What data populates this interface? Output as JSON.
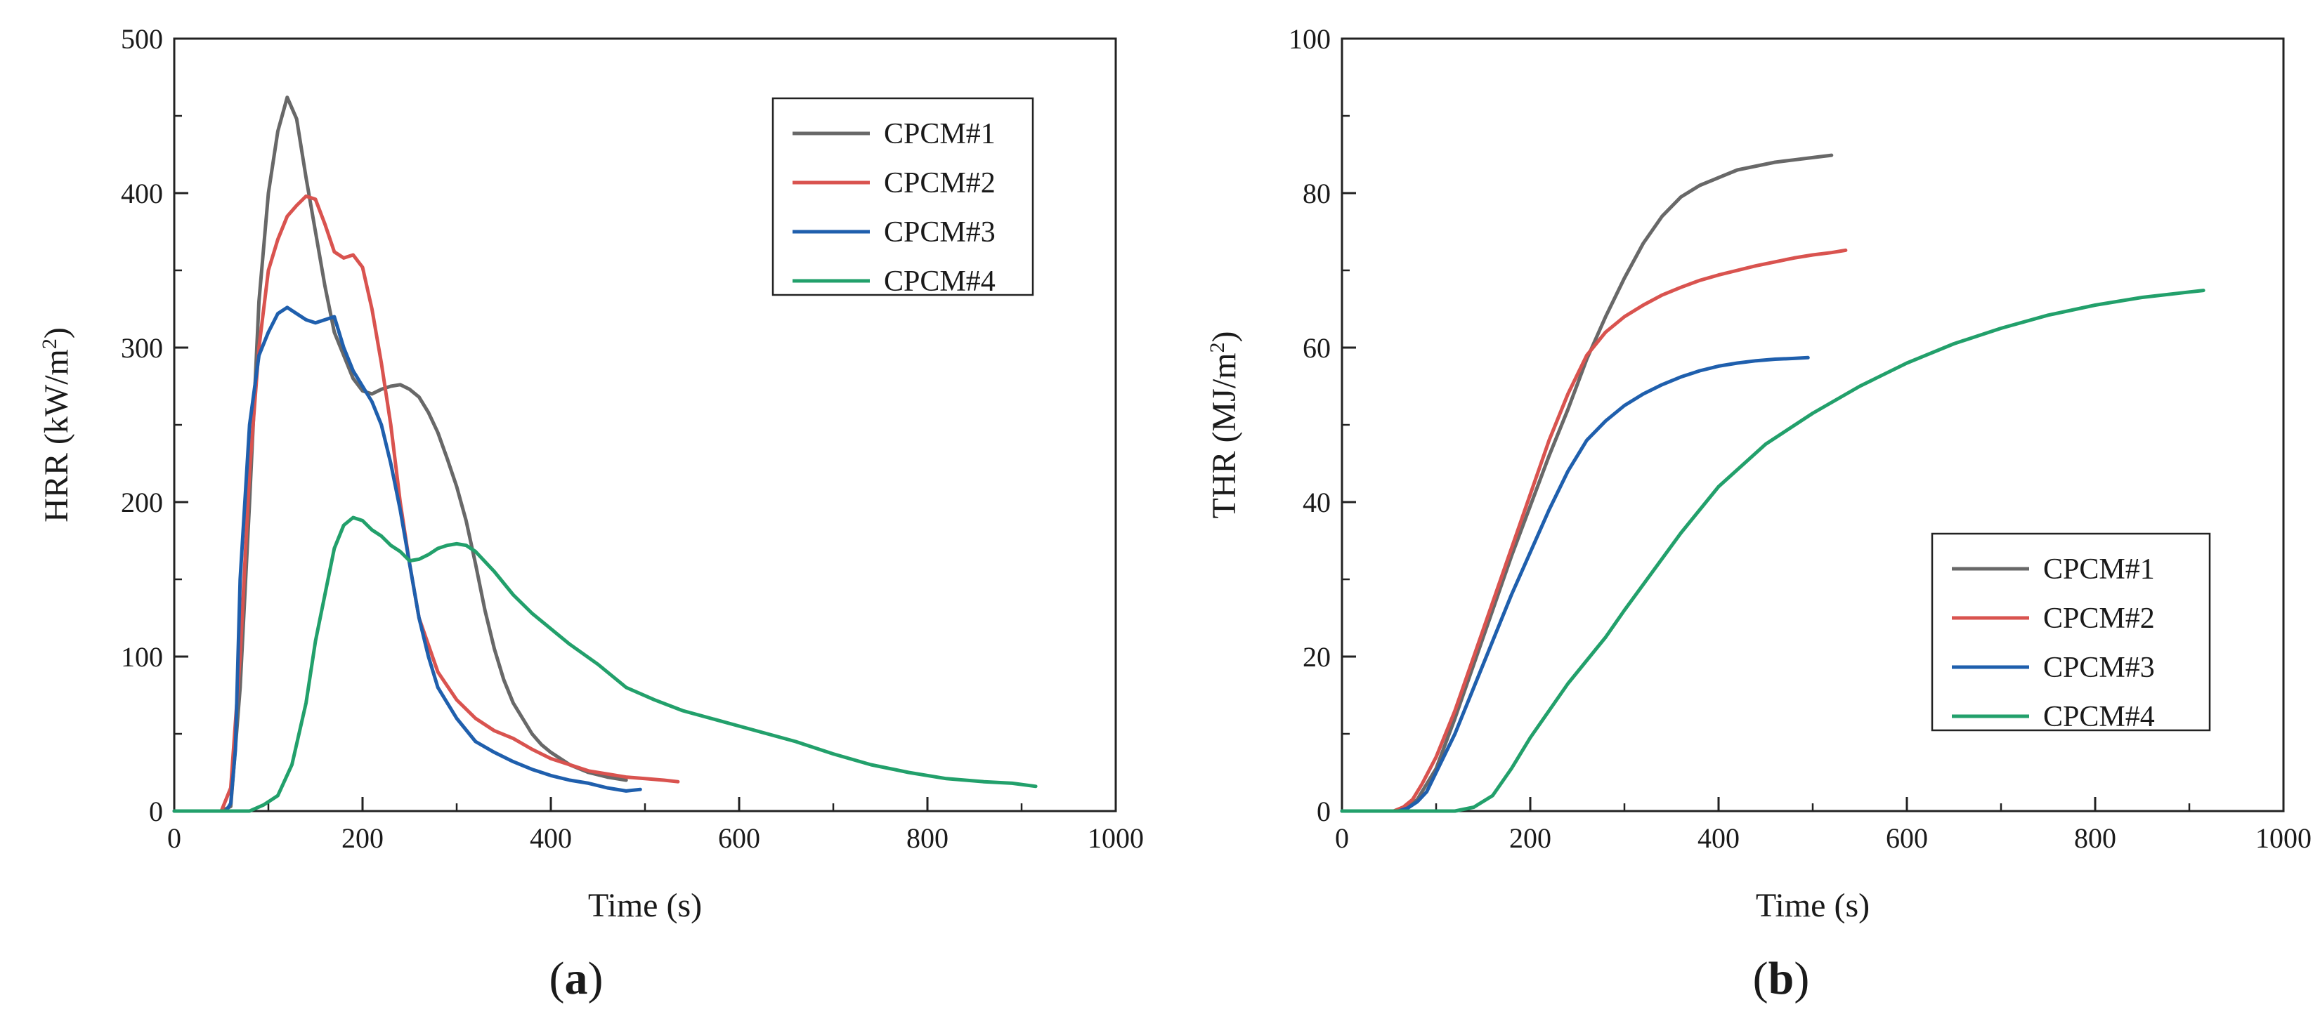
{
  "figure": {
    "panels": [
      {
        "caption_open": "(",
        "caption_letter": "a",
        "caption_close": ")"
      },
      {
        "caption_open": "(",
        "caption_letter": "b",
        "caption_close": ")"
      }
    ]
  },
  "chart_data": [
    {
      "type": "line",
      "title": "",
      "xlabel": "Time (s)",
      "ylabel": "HRR (kW/m",
      "ylabel_sup": "2",
      "ylabel_close": ")",
      "xlim": [
        0,
        1000
      ],
      "ylim": [
        0,
        500
      ],
      "xticks": [
        0,
        200,
        400,
        600,
        800,
        1000
      ],
      "yticks": [
        0,
        100,
        200,
        300,
        400,
        500
      ],
      "xtick_labels": [
        "0",
        "200",
        "400",
        "600",
        "800",
        "1000"
      ],
      "ytick_labels": [
        "0",
        "100",
        "200",
        "300",
        "400",
        "500"
      ],
      "grid": false,
      "legend_position": "top-right",
      "series": [
        {
          "name": "CPCM#1",
          "color": "#686868",
          "x": [
            0,
            50,
            60,
            70,
            80,
            90,
            100,
            110,
            120,
            130,
            140,
            150,
            160,
            170,
            180,
            190,
            200,
            210,
            220,
            230,
            240,
            250,
            260,
            270,
            280,
            290,
            300,
            310,
            320,
            330,
            340,
            350,
            360,
            370,
            380,
            390,
            400,
            420,
            440,
            460,
            480
          ],
          "y": [
            0,
            0,
            3,
            80,
            200,
            330,
            400,
            440,
            462,
            448,
            410,
            375,
            340,
            310,
            295,
            280,
            272,
            270,
            273,
            275,
            276,
            273,
            268,
            258,
            245,
            228,
            210,
            188,
            160,
            130,
            105,
            85,
            70,
            60,
            50,
            43,
            38,
            30,
            25,
            22,
            20
          ]
        },
        {
          "name": "CPCM#2",
          "color": "#d9534f",
          "x": [
            0,
            50,
            60,
            70,
            80,
            90,
            100,
            110,
            120,
            130,
            140,
            150,
            160,
            170,
            180,
            190,
            200,
            210,
            220,
            230,
            240,
            250,
            260,
            280,
            300,
            320,
            340,
            360,
            380,
            400,
            420,
            440,
            460,
            480,
            500,
            520,
            535
          ],
          "y": [
            0,
            0,
            15,
            100,
            220,
            300,
            350,
            370,
            385,
            392,
            398,
            396,
            380,
            362,
            358,
            360,
            352,
            325,
            290,
            250,
            200,
            160,
            125,
            90,
            72,
            60,
            52,
            47,
            40,
            34,
            30,
            26,
            24,
            22,
            21,
            20,
            19
          ]
        },
        {
          "name": "CPCM#3",
          "color": "#1f5fad",
          "x": [
            0,
            55,
            60,
            65,
            70,
            80,
            90,
            100,
            110,
            120,
            130,
            140,
            150,
            160,
            170,
            180,
            190,
            200,
            210,
            220,
            230,
            240,
            250,
            260,
            270,
            280,
            300,
            320,
            340,
            360,
            380,
            400,
            420,
            440,
            460,
            480,
            495
          ],
          "y": [
            0,
            0,
            5,
            40,
            150,
            250,
            295,
            310,
            322,
            326,
            322,
            318,
            316,
            318,
            320,
            300,
            285,
            275,
            265,
            250,
            225,
            195,
            160,
            125,
            100,
            80,
            60,
            45,
            38,
            32,
            27,
            23,
            20,
            18,
            15,
            13,
            14
          ]
        },
        {
          "name": "CPCM#4",
          "color": "#22a06b",
          "x": [
            0,
            80,
            95,
            110,
            125,
            140,
            150,
            160,
            170,
            180,
            190,
            200,
            210,
            220,
            230,
            240,
            250,
            260,
            270,
            280,
            290,
            300,
            310,
            320,
            340,
            360,
            380,
            400,
            420,
            450,
            480,
            510,
            540,
            570,
            600,
            630,
            660,
            700,
            740,
            780,
            820,
            860,
            890,
            915
          ],
          "y": [
            0,
            0,
            4,
            10,
            30,
            70,
            110,
            140,
            170,
            185,
            190,
            188,
            182,
            178,
            172,
            168,
            162,
            163,
            166,
            170,
            172,
            173,
            172,
            168,
            155,
            140,
            128,
            118,
            108,
            95,
            80,
            72,
            65,
            60,
            55,
            50,
            45,
            37,
            30,
            25,
            21,
            19,
            18,
            16
          ]
        }
      ]
    },
    {
      "type": "line",
      "title": "",
      "xlabel": "Time (s)",
      "ylabel": "THR (MJ/m",
      "ylabel_sup": "2",
      "ylabel_close": ")",
      "xlim": [
        0,
        1000
      ],
      "ylim": [
        0,
        100
      ],
      "xticks": [
        0,
        200,
        400,
        600,
        800,
        1000
      ],
      "yticks": [
        0,
        20,
        40,
        60,
        80,
        100
      ],
      "xtick_labels": [
        "0",
        "200",
        "400",
        "600",
        "800",
        "1000"
      ],
      "ytick_labels": [
        "0",
        "20",
        "40",
        "60",
        "80",
        "100"
      ],
      "grid": false,
      "legend_position": "bottom-right",
      "series": [
        {
          "name": "CPCM#1",
          "color": "#686868",
          "x": [
            0,
            60,
            70,
            80,
            100,
            120,
            140,
            160,
            180,
            200,
            220,
            240,
            260,
            280,
            300,
            320,
            340,
            360,
            380,
            400,
            420,
            440,
            460,
            480,
            500,
            520
          ],
          "y": [
            0,
            0,
            0.5,
            1.5,
            5.5,
            12,
            19,
            26,
            33,
            39.5,
            46,
            52,
            58.5,
            64,
            69,
            73.5,
            77,
            79.5,
            81,
            82,
            83,
            83.5,
            84,
            84.3,
            84.6,
            84.9
          ]
        },
        {
          "name": "CPCM#2",
          "color": "#d9534f",
          "x": [
            0,
            55,
            65,
            75,
            85,
            100,
            120,
            140,
            160,
            180,
            200,
            220,
            240,
            260,
            280,
            300,
            320,
            340,
            360,
            380,
            400,
            420,
            440,
            460,
            480,
            500,
            520,
            535
          ],
          "y": [
            0,
            0,
            0.5,
            1.5,
            3.5,
            7,
            13,
            20,
            27,
            34,
            41,
            48,
            54,
            59,
            62,
            64,
            65.5,
            66.8,
            67.8,
            68.7,
            69.4,
            70,
            70.6,
            71.1,
            71.6,
            72,
            72.3,
            72.6
          ]
        },
        {
          "name": "CPCM#3",
          "color": "#1f5fad",
          "x": [
            0,
            60,
            70,
            80,
            90,
            100,
            120,
            140,
            160,
            180,
            200,
            220,
            240,
            260,
            280,
            300,
            320,
            340,
            360,
            380,
            400,
            420,
            440,
            460,
            480,
            495
          ],
          "y": [
            0,
            0,
            0.4,
            1.2,
            2.5,
            5,
            10,
            16,
            22,
            28,
            33.5,
            39,
            44,
            48,
            50.5,
            52.5,
            54,
            55.2,
            56.2,
            57,
            57.6,
            58,
            58.3,
            58.5,
            58.6,
            58.7
          ]
        },
        {
          "name": "CPCM#4",
          "color": "#22a06b",
          "x": [
            0,
            120,
            140,
            160,
            180,
            200,
            220,
            240,
            260,
            280,
            300,
            330,
            360,
            400,
            450,
            500,
            550,
            600,
            650,
            700,
            750,
            800,
            850,
            900,
            915
          ],
          "y": [
            0,
            0,
            0.5,
            2,
            5.5,
            9.5,
            13,
            16.5,
            19.5,
            22.5,
            26,
            31,
            36,
            42,
            47.5,
            51.5,
            55,
            58,
            60.5,
            62.5,
            64.2,
            65.5,
            66.5,
            67.2,
            67.4
          ]
        }
      ]
    }
  ]
}
